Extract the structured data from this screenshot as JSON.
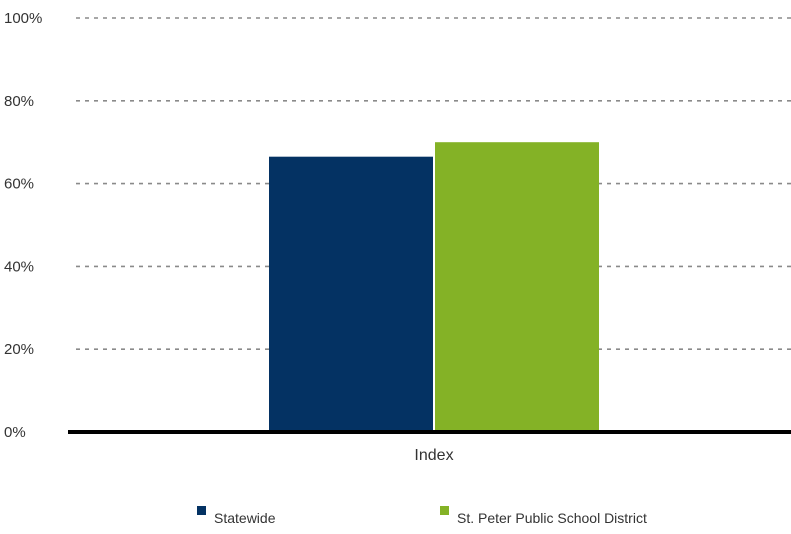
{
  "chart_data": {
    "type": "bar",
    "categories": [
      "Index"
    ],
    "series": [
      {
        "name": "Statewide",
        "values": [
          66.5
        ],
        "color": "#043263"
      },
      {
        "name": "St. Peter Public School District",
        "values": [
          70
        ],
        "color": "#84b226"
      }
    ],
    "y_tick_labels": [
      "0%",
      "20%",
      "40%",
      "60%",
      "80%",
      "100%"
    ],
    "y_ticks": [
      0,
      20,
      40,
      60,
      80,
      100
    ],
    "ylim": [
      0,
      100
    ],
    "grid": "dashed horizontal",
    "legend_position": "bottom",
    "axis_color": "#000000",
    "grid_color": "#8a8a8a"
  }
}
